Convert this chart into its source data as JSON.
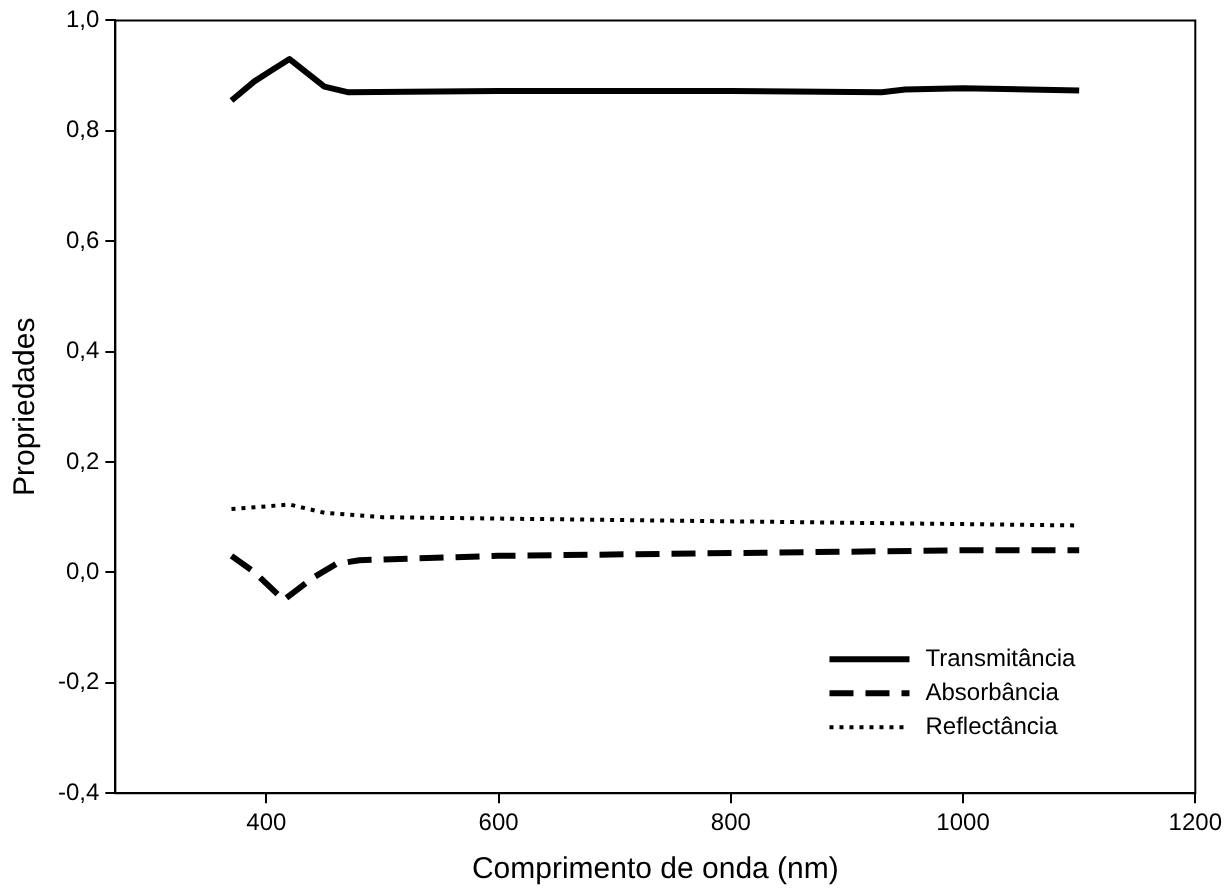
{
  "chart_data": {
    "type": "line",
    "xlabel": "Comprimento de onda (nm)",
    "ylabel": "Propriedades",
    "xlim": [
      270,
      1200
    ],
    "xticks": [
      400,
      600,
      800,
      1000,
      1200
    ],
    "ylim": [
      -0.4,
      1.0
    ],
    "yticks": [
      {
        "value": -0.4,
        "label": "-0,4"
      },
      {
        "value": -0.2,
        "label": "-0,2"
      },
      {
        "value": 0,
        "label": "0,0"
      },
      {
        "value": 0.2,
        "label": "0,2"
      },
      {
        "value": 0.4,
        "label": "0,4"
      },
      {
        "value": 0.6,
        "label": "0,6"
      },
      {
        "value": 0.8,
        "label": "0,8"
      },
      {
        "value": 1.0,
        "label": "1,0"
      }
    ],
    "grid": false,
    "legend": "bottom right",
    "marker": "none",
    "series": [
      {
        "name": "Transmitância",
        "color": "#000000",
        "line_style": "solid",
        "x": [
          370,
          390,
          405,
          420,
          435,
          450,
          470,
          600,
          800,
          930,
          950,
          1000,
          1100
        ],
        "values": [
          0.855,
          0.89,
          0.91,
          0.93,
          0.905,
          0.88,
          0.87,
          0.872,
          0.872,
          0.87,
          0.875,
          0.877,
          0.873
        ]
      },
      {
        "name": "Absorbância",
        "color": "#000000",
        "line_style": "dashed",
        "x": [
          370,
          390,
          415,
          440,
          460,
          480,
          600,
          800,
          1000,
          1100
        ],
        "values": [
          0.03,
          0,
          -0.05,
          -0.01,
          0.015,
          0.022,
          0.03,
          0.035,
          0.04,
          0.04
        ]
      },
      {
        "name": "Reflectância",
        "color": "#000000",
        "line_style": "dotted",
        "x": [
          370,
          390,
          420,
          450,
          500,
          700,
          900,
          1100
        ],
        "values": [
          0.115,
          0.118,
          0.123,
          0.108,
          0.1,
          0.095,
          0.09,
          0.085
        ]
      }
    ]
  }
}
